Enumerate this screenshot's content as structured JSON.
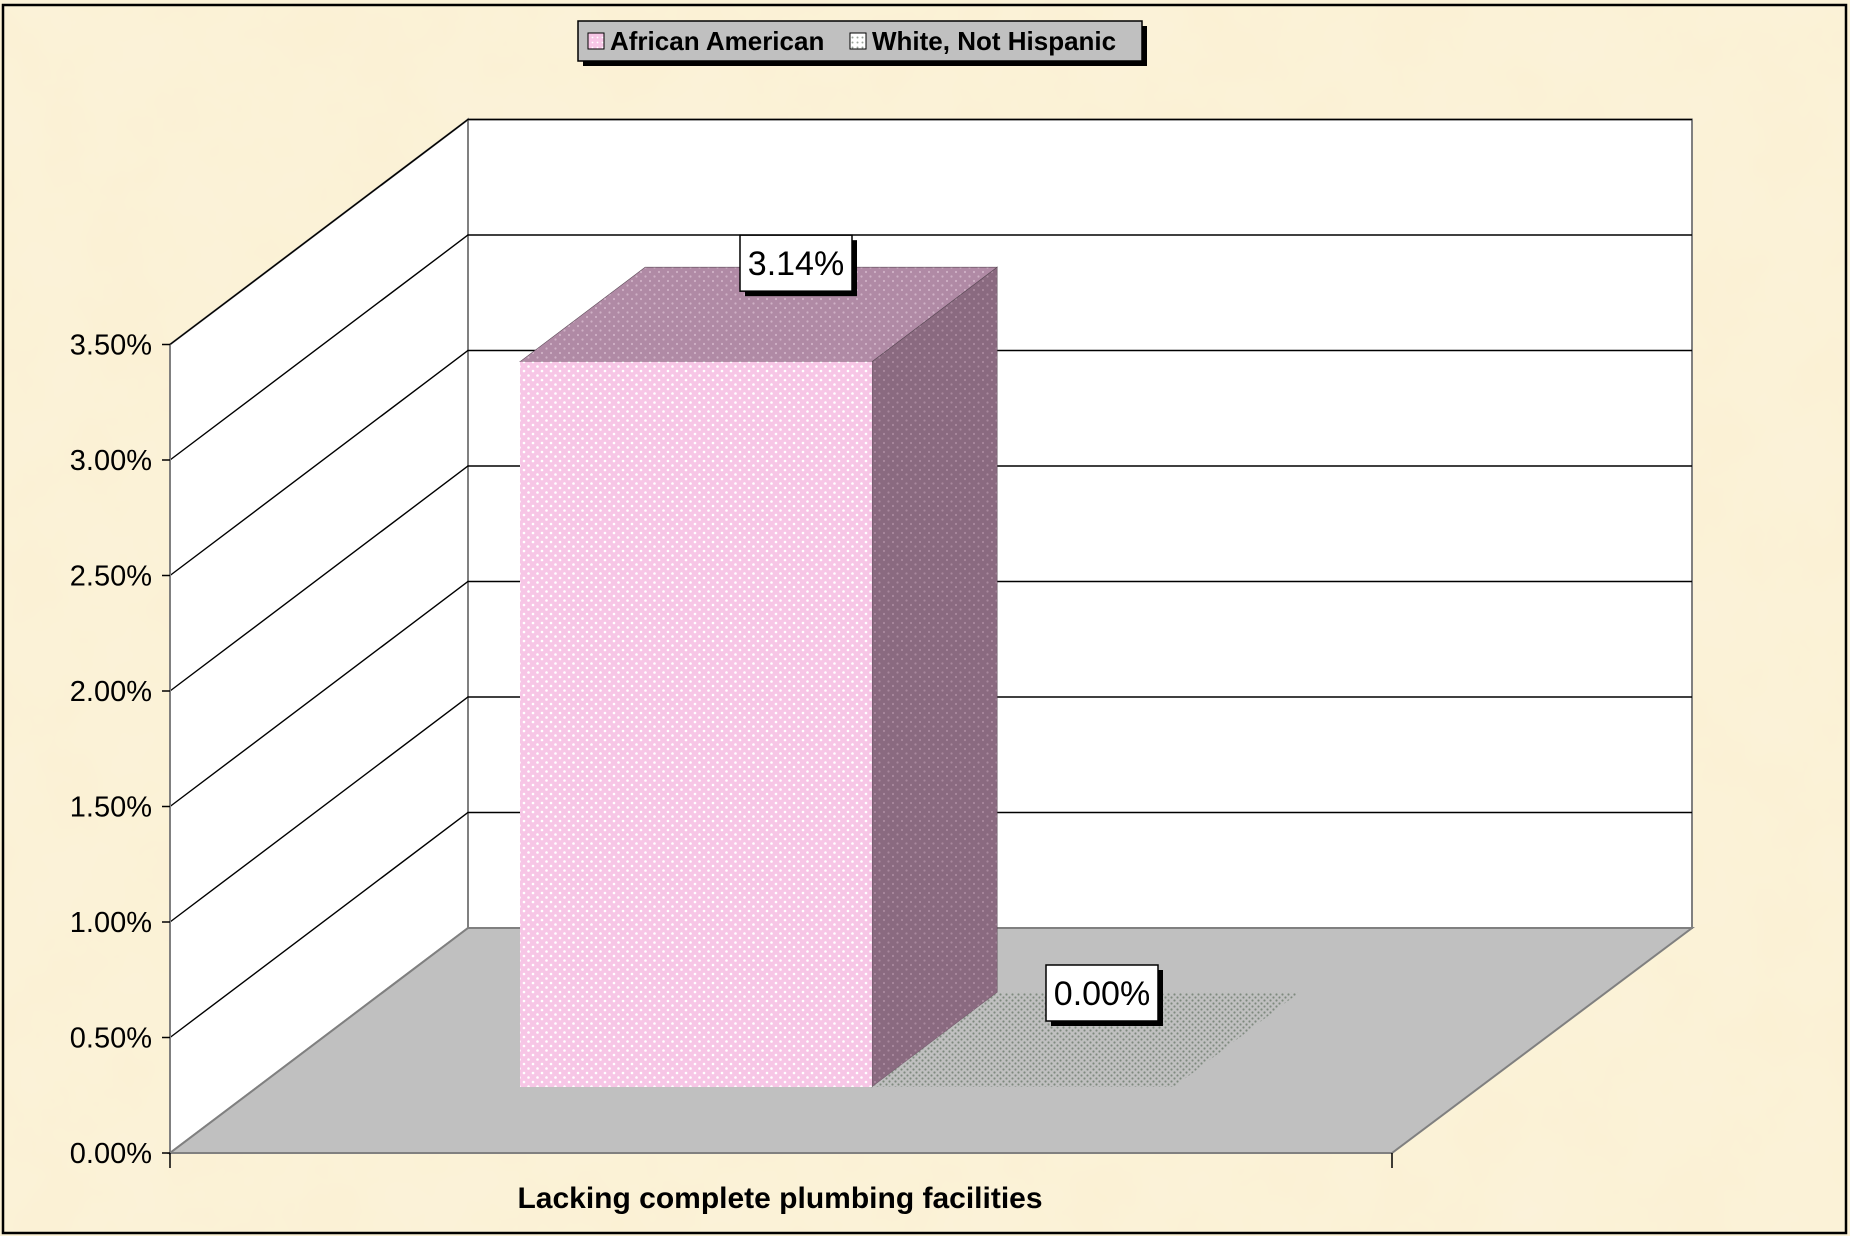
{
  "chart_data": {
    "type": "bar",
    "title": "",
    "categories": [
      "Lacking complete plumbing facilities"
    ],
    "xlabel": "",
    "ylabel": "",
    "ylim": [
      0,
      0.035
    ],
    "yticks": [
      "0.00%",
      "0.50%",
      "1.00%",
      "1.50%",
      "2.00%",
      "2.50%",
      "3.00%",
      "3.50%"
    ],
    "series": [
      {
        "name": "African American",
        "values": [
          0.0314
        ],
        "label": "3.14%",
        "color": "#f7c6e6",
        "pattern": "pink-dots"
      },
      {
        "name": "White, Not Hispanic",
        "values": [
          0.0
        ],
        "label": "0.00%",
        "color": "#9aa39a",
        "pattern": "gray-dots"
      }
    ],
    "legend": "top",
    "grid": true,
    "style": "3d-clustered-column"
  },
  "colors": {
    "background": "#fbf1d3",
    "wall": "#ffffff",
    "floor": "#c0c0c0",
    "legend_bg": "#c0c0c0"
  }
}
